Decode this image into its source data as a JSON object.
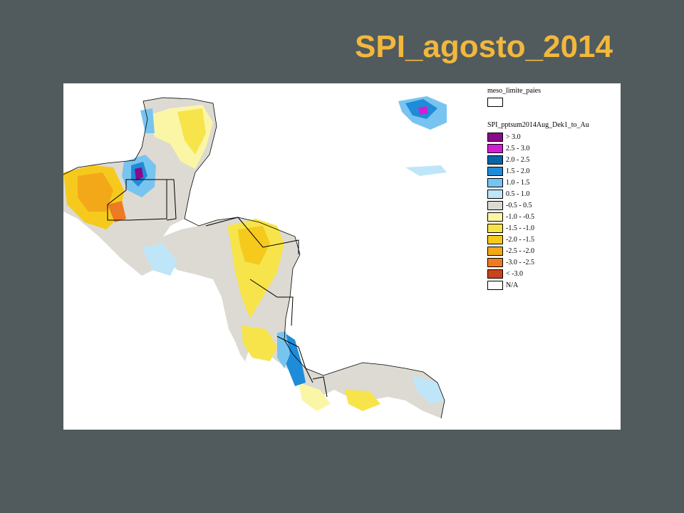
{
  "title": "SPI_agosto_2014",
  "legend": {
    "layer1": "meso_limite_paies",
    "layer2": "SPI_pptsum2014Aug_Dek1_to_Au",
    "classes": [
      {
        "label": "> 3.0",
        "color": "#8a0a8a"
      },
      {
        "label": "2.5 - 3.0",
        "color": "#d21ed2"
      },
      {
        "label": "2.0 - 2.5",
        "color": "#0a64a8"
      },
      {
        "label": "1.5 - 2.0",
        "color": "#1e8cd8"
      },
      {
        "label": "1.0 - 1.5",
        "color": "#78c4f0"
      },
      {
        "label": "0.5 - 1.0",
        "color": "#bfe6f8"
      },
      {
        "label": "-0.5  - 0.5",
        "color": "#dcdad2"
      },
      {
        "label": "-1.0 - -0.5",
        "color": "#fbf6a6"
      },
      {
        "label": "-1.5 - -1.0",
        "color": "#f7e44a"
      },
      {
        "label": "-2.0 - -1.5",
        "color": "#f5ca1c"
      },
      {
        "label": "-2.5 - -2.0",
        "color": "#f3a81a"
      },
      {
        "label": "-3.0 - -2.5",
        "color": "#ee7a22"
      },
      {
        "label": "< -3.0",
        "color": "#c8441a"
      },
      {
        "label": "N/A",
        "color": "#ffffff"
      }
    ]
  }
}
